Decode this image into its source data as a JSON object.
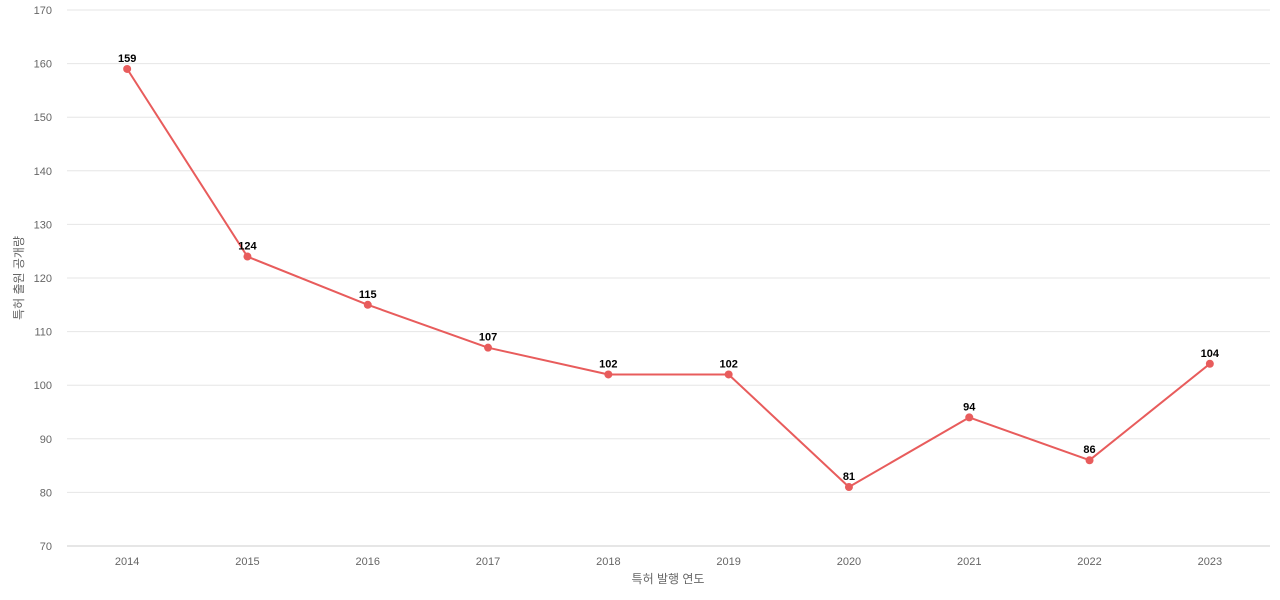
{
  "chart_data": {
    "type": "line",
    "title": "",
    "xlabel": "특허 발행 연도",
    "ylabel": "특허 출원 공개량",
    "x": [
      "2014",
      "2015",
      "2016",
      "2017",
      "2018",
      "2019",
      "2020",
      "2021",
      "2022",
      "2023"
    ],
    "series": [
      {
        "values": [
          159,
          124,
          115,
          107,
          102,
          102,
          81,
          94,
          86,
          104
        ],
        "color": "#e85c5c"
      }
    ],
    "ylim": [
      70,
      170
    ],
    "yticks": [
      70,
      80,
      90,
      100,
      110,
      120,
      130,
      140,
      150,
      160,
      170
    ],
    "grid": true,
    "legend": "none",
    "data_labels": true
  }
}
